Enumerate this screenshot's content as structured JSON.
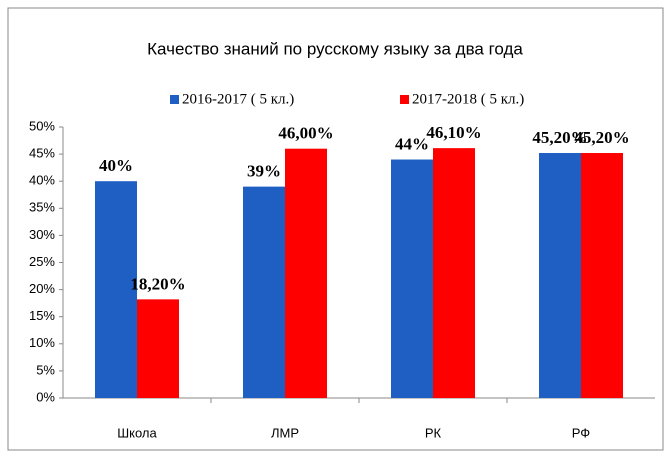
{
  "chart_data": {
    "type": "bar",
    "title": "Качество знаний по русскому языку за два года",
    "categories": [
      "Школа",
      "ЛМР",
      "РК",
      "РФ"
    ],
    "series": [
      {
        "name": "2016-2017 ( 5 кл.)",
        "color": "#1f5fc4",
        "values": [
          40,
          39,
          44,
          45.2
        ],
        "value_labels": [
          "40%",
          "39%",
          "44%",
          "45,20%"
        ]
      },
      {
        "name": "2017-2018 ( 5 кл.)",
        "color": "#ff0000",
        "values": [
          18.2,
          46,
          46.1,
          45.2
        ],
        "value_labels": [
          "18,20%",
          "46,00%",
          "46,10%",
          "45,20%"
        ]
      }
    ],
    "ylim": [
      0,
      50
    ],
    "yticks": [
      {
        "value": 0,
        "label": "0%"
      },
      {
        "value": 5,
        "label": "5%"
      },
      {
        "value": 10,
        "label": "10%"
      },
      {
        "value": 15,
        "label": "15%"
      },
      {
        "value": 20,
        "label": "20%"
      },
      {
        "value": 25,
        "label": "25%"
      },
      {
        "value": 30,
        "label": "30%"
      },
      {
        "value": 35,
        "label": "35%"
      },
      {
        "value": 40,
        "label": "40%"
      },
      {
        "value": 45,
        "label": "45%"
      },
      {
        "value": 50,
        "label": "50%"
      }
    ],
    "grid": false,
    "legend": "top"
  }
}
